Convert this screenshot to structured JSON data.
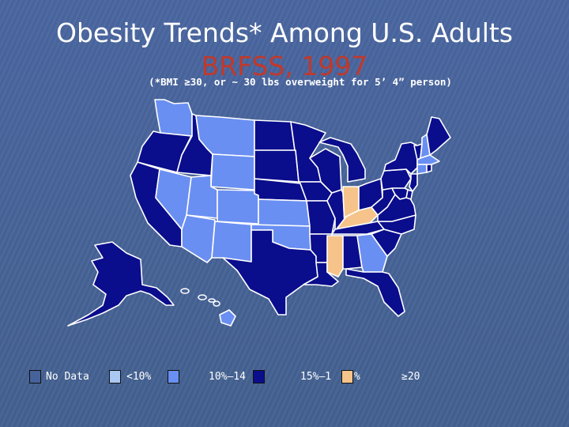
{
  "title": "Obesity Trends* Among U.S. Adults",
  "subtitle": "BRFSS, 1997",
  "note": "(*BMI ≥30, or ~ 30 lbs overweight for 5’ 4” person)",
  "colors": {
    "no_data": "#46629a",
    "lt10": "#a9c8f2",
    "b10_14": "#6a8ff2",
    "b15_19": "#0a0d8c",
    "ge20": "#f6c48a"
  },
  "legend": [
    {
      "key": "no_data",
      "label": "No Data"
    },
    {
      "key": "lt10",
      "label": "<10%"
    },
    {
      "key": "b10_14",
      "label": "10%–14"
    },
    {
      "key": "b15_19",
      "label": "15%–1"
    },
    {
      "key": "ge20",
      "label": "≥20"
    }
  ],
  "legend_overlap_tail": "%",
  "states": {
    "WA": "b10_14",
    "OR": "b15_19",
    "CA": "b15_19",
    "NV": "b10_14",
    "ID": "b15_19",
    "MT": "b10_14",
    "WY": "b10_14",
    "UT": "b10_14",
    "AZ": "b10_14",
    "CO": "b10_14",
    "NM": "b10_14",
    "ND": "b15_19",
    "SD": "b15_19",
    "NE": "b15_19",
    "KS": "b10_14",
    "OK": "b10_14",
    "TX": "b15_19",
    "MN": "b15_19",
    "IA": "b15_19",
    "MO": "b15_19",
    "AR": "b15_19",
    "LA": "b15_19",
    "WI": "b15_19",
    "IL": "b15_19",
    "MI": "b15_19",
    "IN": "ge20",
    "OH": "b15_19",
    "KY": "ge20",
    "TN": "b15_19",
    "MS": "ge20",
    "AL": "b15_19",
    "GA": "b10_14",
    "FL": "b15_19",
    "SC": "b15_19",
    "NC": "b15_19",
    "VA": "b15_19",
    "WV": "b15_19",
    "PA": "b15_19",
    "NY": "b15_19",
    "VT": "b15_19",
    "NH": "b10_14",
    "ME": "b15_19",
    "MA": "b10_14",
    "CT": "b10_14",
    "RI": "b15_19",
    "NJ": "b15_19",
    "DE": "b15_19",
    "MD": "b15_19",
    "AK": "b15_19",
    "HI": "b10_14"
  }
}
